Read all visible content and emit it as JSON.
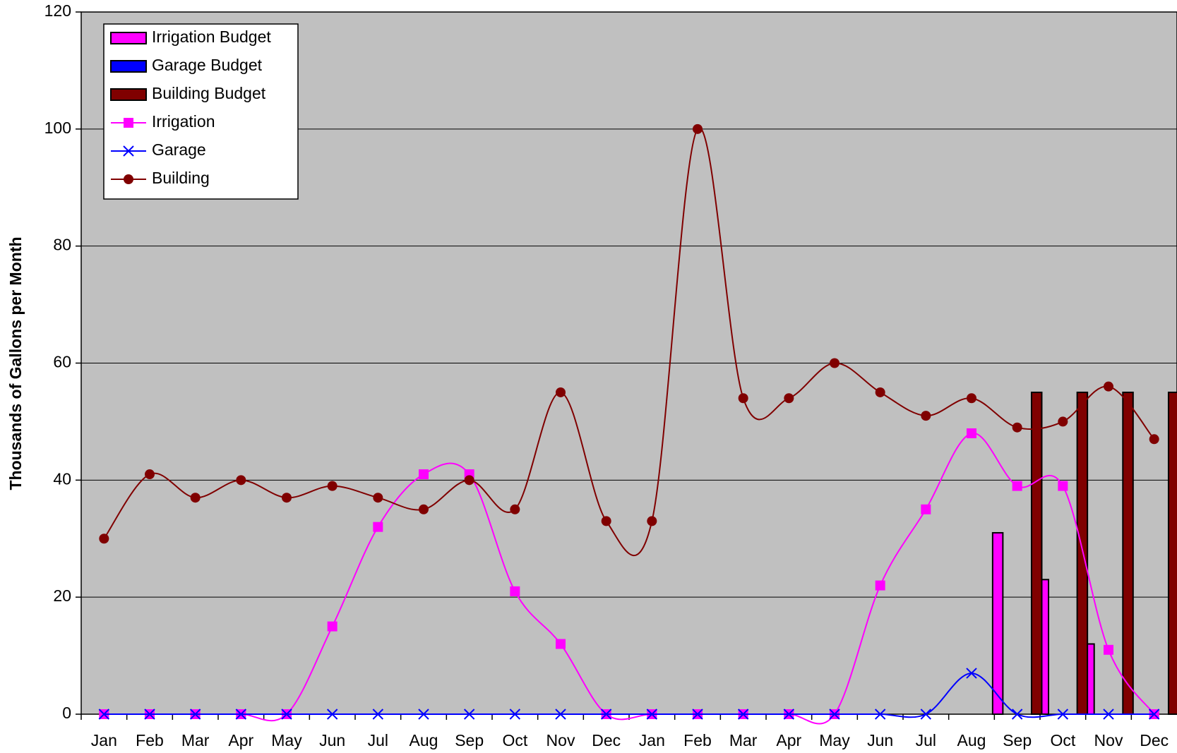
{
  "chart_data": {
    "type": "bar-line",
    "y_label": "Thousands of Gallons per Month",
    "categories": [
      "Jan",
      "Feb",
      "Mar",
      "Apr",
      "May",
      "Jun",
      "Jul",
      "Aug",
      "Sep",
      "Oct",
      "Nov",
      "Dec",
      "Jan",
      "Feb",
      "Mar",
      "Apr",
      "May",
      "Jun",
      "Jul",
      "Aug",
      "Sep",
      "Oct",
      "Nov",
      "Dec"
    ],
    "ylim": [
      0,
      120
    ],
    "yticks": [
      0,
      20,
      40,
      60,
      80,
      100,
      120
    ],
    "grid": true,
    "legend": "upper-left",
    "series": [
      {
        "name": "Irrigation Budget",
        "kind": "bar",
        "color": "#ff00ff",
        "values": [
          null,
          null,
          null,
          null,
          null,
          null,
          null,
          null,
          null,
          null,
          null,
          null,
          null,
          null,
          null,
          null,
          null,
          null,
          null,
          null,
          31,
          23,
          12,
          0
        ]
      },
      {
        "name": "Garage Budget",
        "kind": "bar",
        "color": "#0000ff",
        "values": [
          null,
          null,
          null,
          null,
          null,
          null,
          null,
          null,
          null,
          null,
          null,
          null,
          null,
          null,
          null,
          null,
          null,
          null,
          null,
          null,
          0,
          0,
          0,
          0
        ]
      },
      {
        "name": "Building Budget",
        "kind": "bar",
        "color": "#800000",
        "values": [
          null,
          null,
          null,
          null,
          null,
          null,
          null,
          null,
          null,
          null,
          null,
          null,
          null,
          null,
          null,
          null,
          null,
          null,
          null,
          null,
          55,
          55,
          55,
          55
        ]
      },
      {
        "name": "Irrigation",
        "kind": "line",
        "marker": "square",
        "color": "#ff00ff",
        "values": [
          0,
          0,
          0,
          0,
          0,
          15,
          32,
          41,
          41,
          21,
          12,
          0,
          0,
          0,
          0,
          0,
          0,
          22,
          35,
          48,
          39,
          39,
          11,
          0
        ]
      },
      {
        "name": "Garage",
        "kind": "line",
        "marker": "x",
        "color": "#0000ff",
        "values": [
          0,
          0,
          0,
          0,
          0,
          0,
          0,
          0,
          0,
          0,
          0,
          0,
          0,
          0,
          0,
          0,
          0,
          0,
          0,
          7,
          0,
          0,
          0,
          0
        ]
      },
      {
        "name": "Building",
        "kind": "line",
        "marker": "circle",
        "color": "#800000",
        "values": [
          30,
          41,
          37,
          40,
          37,
          39,
          37,
          35,
          40,
          35,
          55,
          33,
          33,
          100,
          54,
          54,
          60,
          55,
          51,
          54,
          49,
          50,
          56,
          47
        ]
      }
    ]
  }
}
